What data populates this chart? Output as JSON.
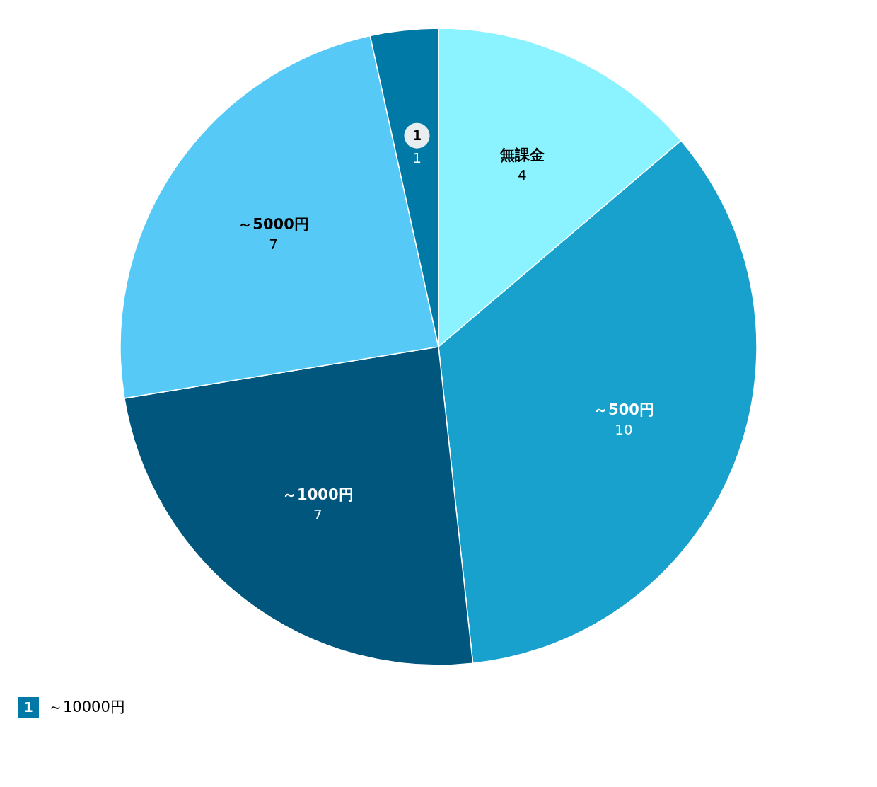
{
  "chart_data": {
    "type": "pie",
    "categories": [
      "無課金",
      "～500円",
      "～1000円",
      "～5000円",
      "～10000円"
    ],
    "values": [
      4,
      10,
      7,
      7,
      1
    ],
    "colors": [
      "#8af3ff",
      "#18a1cd",
      "#00567c",
      "#56c9f6",
      "#0079a6"
    ],
    "data_labels": true,
    "annotations": [
      {
        "text": "1",
        "x": "～10000円"
      }
    ]
  }
}
